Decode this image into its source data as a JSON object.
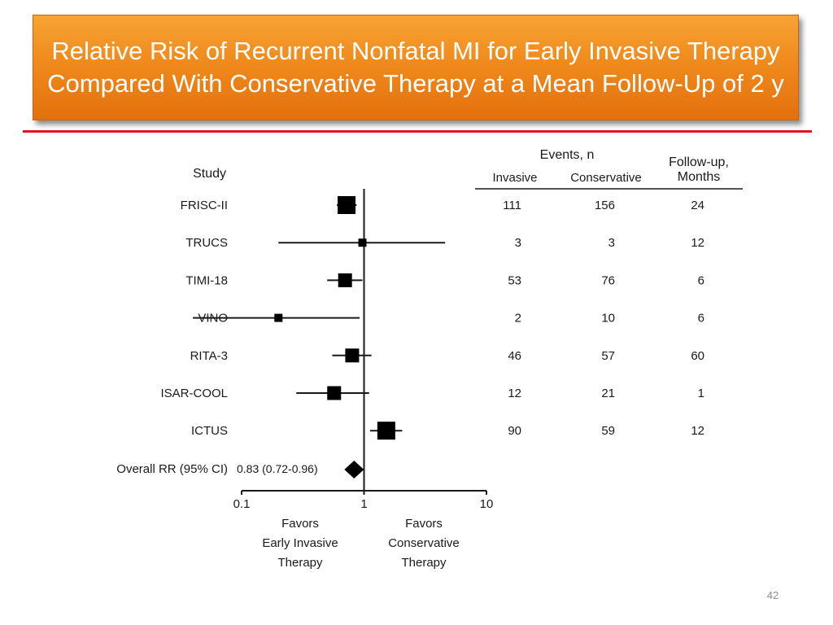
{
  "slide": {
    "title": "Relative Risk of Recurrent Nonfatal MI for Early Invasive Therapy Compared With Conservative Therapy at a Mean Follow-Up of 2 y",
    "page_number": "42",
    "title_color": "#f08a1c",
    "rule_color": "#e0141a"
  },
  "chart_data": {
    "type": "forest",
    "x_scale": "log",
    "xlim": [
      0.1,
      10
    ],
    "x_ticks": [
      0.1,
      1,
      10
    ],
    "x_tick_labels": [
      "0.1",
      "1",
      "10"
    ],
    "reference_line": 1,
    "study_header": "Study",
    "events_header": "Events, n",
    "col_invasive": "Invasive",
    "col_conservative": "Conservative",
    "col_followup_line1": "Follow-up,",
    "col_followup_line2": "Months",
    "favors_left": [
      "Favors",
      "Early Invasive",
      "Therapy"
    ],
    "favors_right": [
      "Favors",
      "Conservative",
      "Therapy"
    ],
    "studies": [
      {
        "name": "FRISC-II",
        "rr": 0.72,
        "ci_low": 0.6,
        "ci_high": 0.87,
        "weight": "large",
        "invasive": "111",
        "conservative": "156",
        "followup": "24"
      },
      {
        "name": "TRUCS",
        "rr": 0.97,
        "ci_low": 0.2,
        "ci_high": 4.6,
        "weight": "small",
        "invasive": "3",
        "conservative": "3",
        "followup": "12"
      },
      {
        "name": "TIMI-18",
        "rr": 0.7,
        "ci_low": 0.5,
        "ci_high": 0.97,
        "weight": "medium",
        "invasive": "53",
        "conservative": "76",
        "followup": "6"
      },
      {
        "name": "VINO",
        "rr": 0.2,
        "ci_low": 0.04,
        "ci_high": 0.92,
        "weight": "small",
        "invasive": "2",
        "conservative": "10",
        "followup": "6"
      },
      {
        "name": "RITA-3",
        "rr": 0.8,
        "ci_low": 0.55,
        "ci_high": 1.15,
        "weight": "medium",
        "invasive": "46",
        "conservative": "57",
        "followup": "60"
      },
      {
        "name": "ISAR-COOL",
        "rr": 0.57,
        "ci_low": 0.28,
        "ci_high": 1.1,
        "weight": "medium",
        "invasive": "12",
        "conservative": "21",
        "followup": "1"
      },
      {
        "name": "ICTUS",
        "rr": 1.52,
        "ci_low": 1.12,
        "ci_high": 2.05,
        "weight": "large",
        "invasive": "90",
        "conservative": "59",
        "followup": "12"
      }
    ],
    "overall": {
      "label": "Overall RR (95% CI)",
      "value_text": "0.83 (0.72-0.96)",
      "rr": 0.83,
      "ci_low": 0.72,
      "ci_high": 0.96
    }
  }
}
